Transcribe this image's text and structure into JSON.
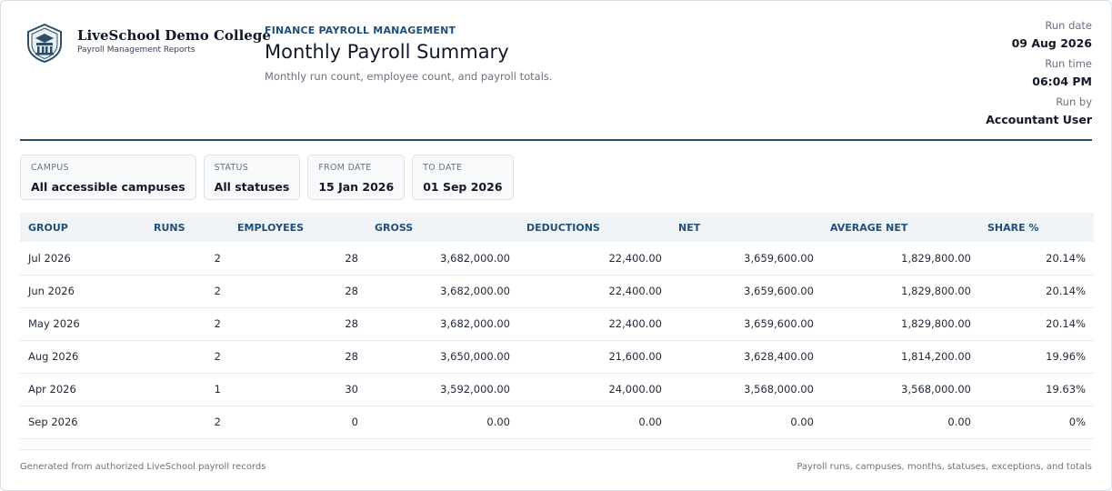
{
  "brand": {
    "logo_icon": "college-crest-icon",
    "name": "LiveSchool Demo College",
    "subtitle": "Payroll Management Reports"
  },
  "report": {
    "eyebrow": "FINANCE PAYROLL MANAGEMENT",
    "title": "Monthly Payroll Summary",
    "subtitle": "Monthly run count, employee count, and payroll totals."
  },
  "meta": {
    "run_date_label": "Run date",
    "run_date": "09 Aug 2026",
    "run_time_label": "Run time",
    "run_time": "06:04 PM",
    "run_by_label": "Run by",
    "run_by": "Accountant User"
  },
  "filters": [
    {
      "label": "CAMPUS",
      "value": "All accessible campuses"
    },
    {
      "label": "STATUS",
      "value": "All statuses"
    },
    {
      "label": "FROM DATE",
      "value": "15 Jan 2026"
    },
    {
      "label": "TO DATE",
      "value": "01 Sep 2026"
    }
  ],
  "table": {
    "headers": [
      "GROUP",
      "RUNS",
      "EMPLOYEES",
      "GROSS",
      "DEDUCTIONS",
      "NET",
      "AVERAGE NET",
      "SHARE %"
    ],
    "rows": [
      [
        "Jul 2026",
        "2",
        "28",
        "3,682,000.00",
        "22,400.00",
        "3,659,600.00",
        "1,829,800.00",
        "20.14%"
      ],
      [
        "Jun 2026",
        "2",
        "28",
        "3,682,000.00",
        "22,400.00",
        "3,659,600.00",
        "1,829,800.00",
        "20.14%"
      ],
      [
        "May 2026",
        "2",
        "28",
        "3,682,000.00",
        "22,400.00",
        "3,659,600.00",
        "1,829,800.00",
        "20.14%"
      ],
      [
        "Aug 2026",
        "2",
        "28",
        "3,650,000.00",
        "21,600.00",
        "3,628,400.00",
        "1,814,200.00",
        "19.96%"
      ],
      [
        "Apr 2026",
        "1",
        "30",
        "3,592,000.00",
        "24,000.00",
        "3,568,000.00",
        "3,568,000.00",
        "19.63%"
      ],
      [
        "Sep 2026",
        "2",
        "0",
        "0.00",
        "0.00",
        "0.00",
        "0.00",
        "0%"
      ]
    ]
  },
  "footer": {
    "left": "Generated from authorized LiveSchool payroll records",
    "right": "Payroll runs, campuses, months, statuses, exceptions, and totals"
  },
  "colors": {
    "accent": "#1e4f7a",
    "rule": "#2c4f69",
    "header_bg": "#f1f4f7"
  }
}
